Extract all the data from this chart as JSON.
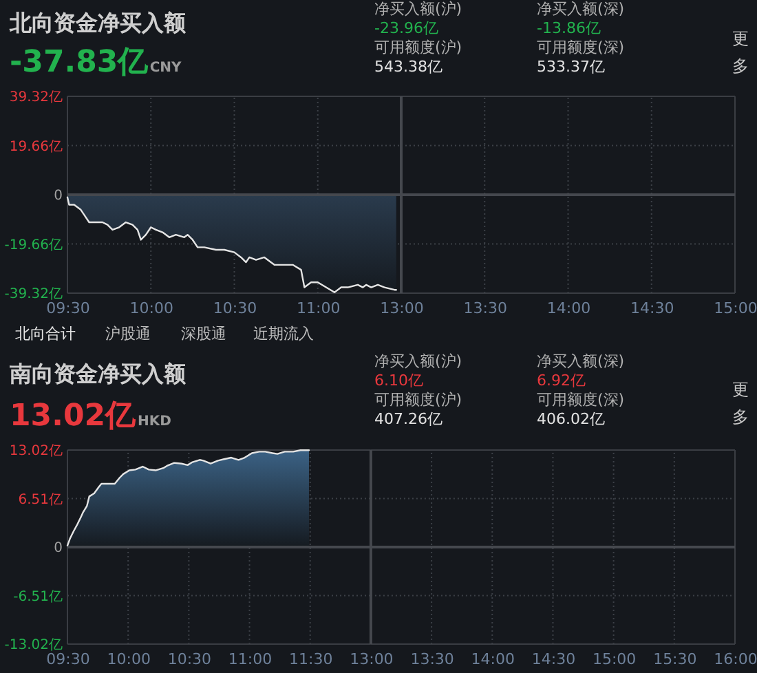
{
  "chart_data": [
    {
      "type": "area",
      "title": "北向资金净买入额",
      "subtitle": "-37.83亿",
      "annotations": [
        "CNY",
        "净买入额(沪)",
        "-23.96亿",
        "可用额度(沪)",
        "543.38亿",
        "净买入额(深)",
        "-13.86亿",
        "可用额度(深)",
        "533.37亿",
        "更多",
        "北向合计",
        "沪股通",
        "深股通",
        "近期流入"
      ],
      "x": [
        9.5,
        9.51,
        9.54,
        9.58,
        9.6,
        9.63,
        9.67,
        9.71,
        9.74,
        9.77,
        9.81,
        9.85,
        9.89,
        9.92,
        9.94,
        9.97,
        10.0,
        10.03,
        10.07,
        10.11,
        10.15,
        10.2,
        10.22,
        10.25,
        10.28,
        10.32,
        10.39,
        10.44,
        10.5,
        10.54,
        10.57,
        10.59,
        10.63,
        10.68,
        10.72,
        10.74,
        10.8,
        10.85,
        10.9,
        10.92,
        10.96,
        11.0,
        11.05,
        11.1,
        11.14,
        11.18,
        11.24,
        11.27,
        11.29,
        11.32,
        11.36,
        11.4,
        11.46,
        11.47
      ],
      "series": [
        {
          "color": "#2a3b4d",
          "values": [
            -1,
            -4,
            -4,
            -6,
            -8,
            -11,
            -11,
            -11,
            -12,
            -14,
            -13,
            -11,
            -12,
            -14,
            -18,
            -16,
            -13,
            -14,
            -15,
            -17,
            -16,
            -17,
            -16,
            -18,
            -21,
            -21,
            -22,
            -22,
            -23,
            -25,
            -27,
            -25,
            -26,
            -25,
            -27,
            -28,
            -28,
            -28,
            -30,
            -37,
            -35,
            -35,
            -37,
            -39,
            -37,
            -37,
            -36,
            -37,
            -36,
            -37,
            -36,
            -37,
            -38,
            -38
          ]
        }
      ],
      "xlim": [
        9.5,
        11.5
      ],
      "xticks": [
        {
          "value": 9.5,
          "label": "09:30"
        },
        {
          "value": 10,
          "label": "10:00"
        },
        {
          "value": 10.5,
          "label": "10:30"
        },
        {
          "value": 11,
          "label": "11:00"
        }
      ],
      "ylim": [
        -39.32,
        39.32
      ],
      "yticks": [
        {
          "value": 39.32,
          "label": "39.32亿"
        },
        {
          "value": 19.66,
          "label": "19.66亿"
        },
        0,
        {
          "value": -19.66,
          "label": "-19.66亿"
        },
        {
          "value": -39.32,
          "label": "-39.32亿"
        }
      ],
      "grid": true,
      "ref_lines": [
        {
          "axis": "y",
          "value": 0,
          "color": "#45484e"
        }
      ]
    },
    {
      "type": "area",
      "xlim": [
        13,
        15
      ],
      "xticks": [
        {
          "value": 13,
          "label": "13:00"
        },
        {
          "value": 13.5,
          "label": "13:30"
        },
        {
          "value": 14,
          "label": "14:00"
        },
        {
          "value": 14.5,
          "label": "14:30"
        },
        {
          "value": 15,
          "label": "15:00"
        }
      ],
      "ylim": [
        -39.32,
        39.32
      ],
      "yticks": [
        {
          "value": 39.32,
          "label": null
        },
        {
          "value": 19.66,
          "label": null
        },
        {
          "value": 0,
          "label": null
        },
        {
          "value": -19.66,
          "label": null
        },
        {
          "value": -39.32,
          "label": null
        }
      ],
      "tick_labels": "x",
      "grid": true,
      "ref_lines": [
        {
          "axis": "y",
          "value": 0,
          "color": "#45484e"
        },
        {
          "axis": "x",
          "value": 13,
          "color": "#45484e"
        }
      ]
    },
    {
      "type": "area",
      "title": "南向资金净买入额",
      "subtitle": "13.02亿",
      "annotations": [
        "HKD",
        "净买入额(沪)",
        "6.10亿",
        "可用额度(沪)",
        "407.26亿",
        "净买入额(深)",
        "6.92亿",
        "可用额度(深)",
        "406.02亿",
        "更多"
      ],
      "x": [
        9.5,
        9.52,
        9.55,
        9.58,
        9.61,
        9.63,
        9.66,
        9.68,
        9.72,
        9.76,
        9.78,
        9.83,
        9.89,
        9.93,
        9.96,
        10.01,
        10.06,
        10.12,
        10.17,
        10.23,
        10.29,
        10.32,
        10.38,
        10.44,
        10.49,
        10.53,
        10.59,
        10.62,
        10.68,
        10.74,
        10.79,
        10.85,
        10.91,
        10.96,
        11.02,
        11.08,
        11.13,
        11.19,
        11.23,
        11.29,
        11.36,
        11.42,
        11.49
      ],
      "series": [
        {
          "color": "#3b6285",
          "values": [
            0.2,
            1.1,
            2.1,
            3.0,
            4.0,
            4.7,
            5.5,
            6.8,
            7.2,
            8.1,
            8.5,
            8.5,
            8.5,
            9.3,
            9.8,
            10.3,
            10.4,
            10.8,
            10.4,
            10.3,
            10.6,
            10.9,
            11.3,
            11.2,
            11.0,
            11.4,
            11.7,
            11.6,
            11.2,
            11.6,
            11.8,
            12.0,
            11.7,
            12.0,
            12.6,
            12.8,
            12.8,
            12.6,
            12.5,
            12.8,
            12.8,
            13.0,
            13.0
          ]
        }
      ],
      "xlim": [
        9.5,
        12
      ],
      "xticks": [
        {
          "value": 9.5,
          "label": "09:30"
        },
        {
          "value": 10,
          "label": "10:00"
        },
        {
          "value": 10.5,
          "label": "10:30"
        },
        {
          "value": 11,
          "label": "11:00"
        },
        {
          "value": 11.5,
          "label": "11:30"
        }
      ],
      "ylim": [
        -13.02,
        13.02
      ],
      "yticks": [
        {
          "value": 13.02,
          "label": "13.02亿"
        },
        {
          "value": 6.51,
          "label": "6.51亿"
        },
        0,
        {
          "value": -6.51,
          "label": "-6.51亿"
        },
        {
          "value": -13.02,
          "label": "-13.02亿"
        }
      ],
      "grid": true,
      "ref_lines": [
        {
          "axis": "y",
          "value": 0,
          "color": "#45484e"
        }
      ]
    },
    {
      "type": "area",
      "xlim": [
        13,
        16
      ],
      "xticks": [
        {
          "value": 13,
          "label": "13:00"
        },
        {
          "value": 13.5,
          "label": "13:30"
        },
        {
          "value": 14,
          "label": "14:00"
        },
        {
          "value": 14.5,
          "label": "14:30"
        },
        {
          "value": 15,
          "label": "15:00"
        },
        {
          "value": 15.5,
          "label": "15:30"
        },
        {
          "value": 16,
          "label": "16:00"
        }
      ],
      "ylim": [
        -13.02,
        13.02
      ],
      "yticks": [
        {
          "value": 13.02,
          "label": null
        },
        {
          "value": 6.51,
          "label": null
        },
        {
          "value": 0,
          "label": null
        },
        {
          "value": -6.51,
          "label": null
        },
        {
          "value": -13.02,
          "label": null
        }
      ],
      "tick_labels": "x",
      "grid": true,
      "ref_lines": [
        {
          "axis": "y",
          "value": 0,
          "color": "#45484e"
        },
        {
          "axis": "x",
          "value": 13,
          "color": "#45484e"
        }
      ]
    }
  ]
}
